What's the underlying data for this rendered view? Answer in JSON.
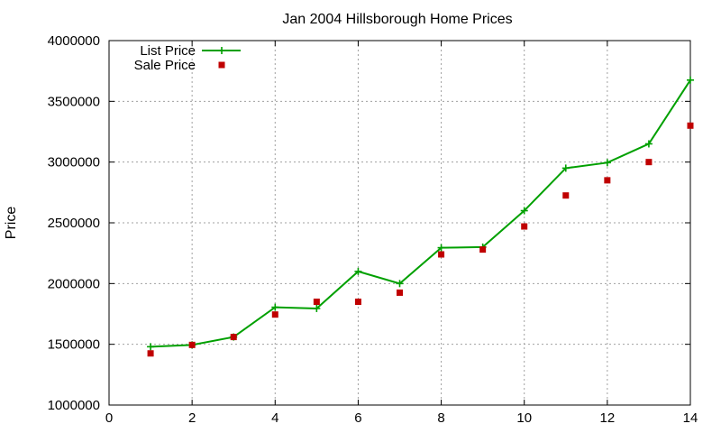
{
  "chart_data": {
    "type": "line",
    "title": "Jan 2004 Hillsborough Home Prices",
    "xlabel": "",
    "ylabel": "Price",
    "xlim": [
      0,
      14
    ],
    "ylim": [
      1000000,
      4000000
    ],
    "x_ticks": [
      0,
      2,
      4,
      6,
      8,
      10,
      12,
      14
    ],
    "x_tick_labels": [
      "0",
      "2",
      "4",
      "6",
      "8",
      "10",
      "12",
      "14"
    ],
    "y_ticks": [
      1000000,
      1500000,
      2000000,
      2500000,
      3000000,
      3500000,
      4000000
    ],
    "y_tick_labels": [
      "1000000",
      "1500000",
      "2000000",
      "2500000",
      "3000000",
      "3500000",
      "4000000"
    ],
    "grid": true,
    "legend_position": "top-left",
    "series": [
      {
        "name": "List Price",
        "style": "line+points",
        "marker": "plus",
        "color": "#00a000",
        "x": [
          1,
          2,
          3,
          4,
          5,
          6,
          7,
          8,
          9,
          10,
          11,
          12,
          13,
          14
        ],
        "y": [
          1480000,
          1495000,
          1560000,
          1805000,
          1795000,
          2100000,
          2000000,
          2295000,
          2300000,
          2600000,
          2950000,
          2995000,
          3150000,
          3675000
        ]
      },
      {
        "name": "Sale Price",
        "style": "points",
        "marker": "square",
        "color": "#c00000",
        "x": [
          1,
          2,
          3,
          4,
          5,
          6,
          7,
          8,
          9,
          10,
          11,
          12,
          13,
          14
        ],
        "y": [
          1425000,
          1495000,
          1560000,
          1745000,
          1850000,
          1850000,
          1925000,
          2240000,
          2280000,
          2470000,
          2725000,
          2850000,
          3000000,
          3300000
        ]
      }
    ]
  }
}
